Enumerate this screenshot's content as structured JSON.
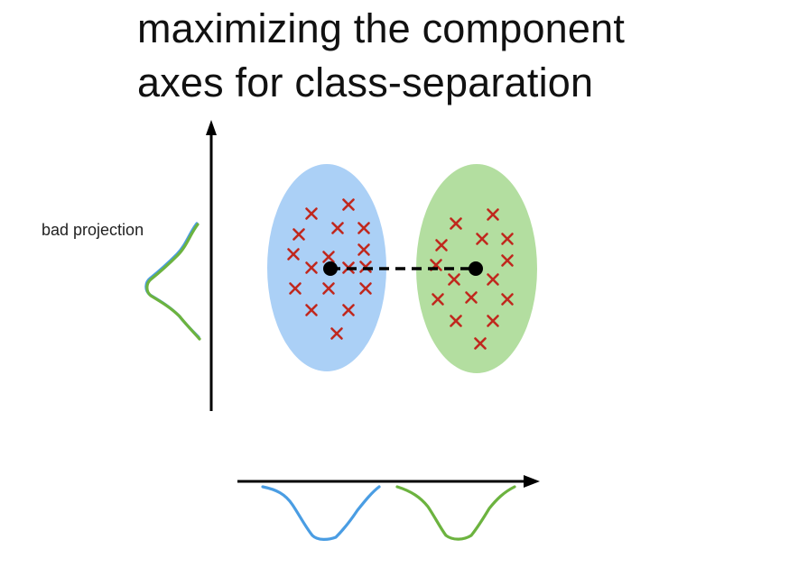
{
  "title": {
    "line1": "maximizing the component",
    "line2": "axes for class-separation"
  },
  "annotations": {
    "vertical_projection_label": "bad projection"
  },
  "colors": {
    "class_a_fill": "#abd0f6",
    "class_b_fill": "#b3dea0",
    "class_a_curve": "#4a9de3",
    "class_b_curve": "#6cb33f",
    "marker": "#c0281e",
    "axis": "#000000",
    "mean_point": "#000000"
  },
  "icons": {
    "sample_marker": "x-mark-icon",
    "class_mean": "filled-dot-icon"
  }
}
